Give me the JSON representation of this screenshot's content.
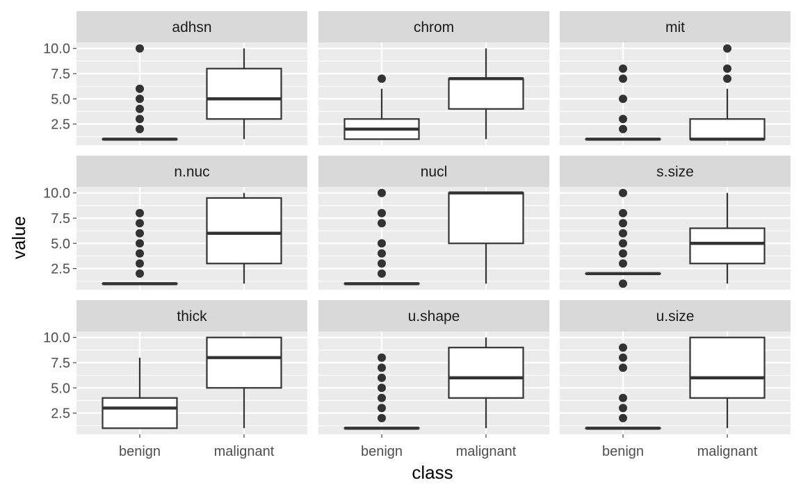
{
  "chart_data": {
    "type": "boxplot",
    "facet_layout": "3x3",
    "xlabel": "class",
    "ylabel": "value",
    "categories": [
      "benign",
      "malignant"
    ],
    "y_ticks": [
      "2.5",
      "5.0",
      "7.5",
      "10.0"
    ],
    "y_tick_values": [
      2.5,
      5.0,
      7.5,
      10.0
    ],
    "ylim": [
      0.4,
      10.6
    ],
    "grid": true,
    "colors": {
      "panel_bg": "#ebebeb",
      "strip_bg": "#d9d9d9",
      "grid": "#ffffff",
      "box_fill": "#ffffff",
      "box_line": "#333333",
      "outlier": "#333333"
    },
    "panels": [
      {
        "name": "adhsn",
        "boxes": [
          {
            "category": "benign",
            "min": 1,
            "q1": 1,
            "median": 1,
            "q3": 1,
            "max": 1,
            "outliers": [
              2,
              3,
              4,
              5,
              6,
              10
            ]
          },
          {
            "category": "malignant",
            "min": 1,
            "q1": 3,
            "median": 5,
            "q3": 8,
            "max": 10,
            "outliers": []
          }
        ]
      },
      {
        "name": "chrom",
        "boxes": [
          {
            "category": "benign",
            "min": 1,
            "q1": 1,
            "median": 2,
            "q3": 3,
            "max": 6,
            "outliers": [
              7
            ]
          },
          {
            "category": "malignant",
            "min": 1,
            "q1": 4,
            "median": 7,
            "q3": 7,
            "max": 10,
            "outliers": []
          }
        ]
      },
      {
        "name": "mit",
        "boxes": [
          {
            "category": "benign",
            "min": 1,
            "q1": 1,
            "median": 1,
            "q3": 1,
            "max": 1,
            "outliers": [
              2,
              3,
              5,
              7,
              8
            ]
          },
          {
            "category": "malignant",
            "min": 1,
            "q1": 1,
            "median": 1,
            "q3": 3,
            "max": 6,
            "outliers": [
              7,
              8,
              10
            ]
          }
        ]
      },
      {
        "name": "n.nuc",
        "boxes": [
          {
            "category": "benign",
            "min": 1,
            "q1": 1,
            "median": 1,
            "q3": 1,
            "max": 1,
            "outliers": [
              2,
              3,
              4,
              5,
              6,
              7,
              8
            ]
          },
          {
            "category": "malignant",
            "min": 1,
            "q1": 3,
            "median": 6,
            "q3": 9.5,
            "max": 10,
            "outliers": []
          }
        ]
      },
      {
        "name": "nucl",
        "boxes": [
          {
            "category": "benign",
            "min": 1,
            "q1": 1,
            "median": 1,
            "q3": 1,
            "max": 1,
            "outliers": [
              2,
              3,
              4,
              5,
              7,
              8,
              10
            ]
          },
          {
            "category": "malignant",
            "min": 1,
            "q1": 5,
            "median": 10,
            "q3": 10,
            "max": 10,
            "outliers": []
          }
        ]
      },
      {
        "name": "s.size",
        "boxes": [
          {
            "category": "benign",
            "min": 2,
            "q1": 2,
            "median": 2,
            "q3": 2,
            "max": 2,
            "outliers": [
              1,
              3,
              4,
              5,
              6,
              7,
              8,
              10
            ]
          },
          {
            "category": "malignant",
            "min": 1,
            "q1": 3,
            "median": 5,
            "q3": 6.5,
            "max": 10,
            "outliers": []
          }
        ]
      },
      {
        "name": "thick",
        "boxes": [
          {
            "category": "benign",
            "min": 1,
            "q1": 1,
            "median": 3,
            "q3": 4,
            "max": 8,
            "outliers": []
          },
          {
            "category": "malignant",
            "min": 1,
            "q1": 5,
            "median": 8,
            "q3": 10,
            "max": 10,
            "outliers": []
          }
        ]
      },
      {
        "name": "u.shape",
        "boxes": [
          {
            "category": "benign",
            "min": 1,
            "q1": 1,
            "median": 1,
            "q3": 1,
            "max": 1,
            "outliers": [
              2,
              3,
              4,
              5,
              6,
              7,
              8
            ]
          },
          {
            "category": "malignant",
            "min": 1,
            "q1": 4,
            "median": 6,
            "q3": 9,
            "max": 10,
            "outliers": []
          }
        ]
      },
      {
        "name": "u.size",
        "boxes": [
          {
            "category": "benign",
            "min": 1,
            "q1": 1,
            "median": 1,
            "q3": 1,
            "max": 1,
            "outliers": [
              2,
              3,
              4,
              7,
              8,
              9
            ]
          },
          {
            "category": "malignant",
            "min": 1,
            "q1": 4,
            "median": 6,
            "q3": 10,
            "max": 10,
            "outliers": []
          }
        ]
      }
    ]
  }
}
